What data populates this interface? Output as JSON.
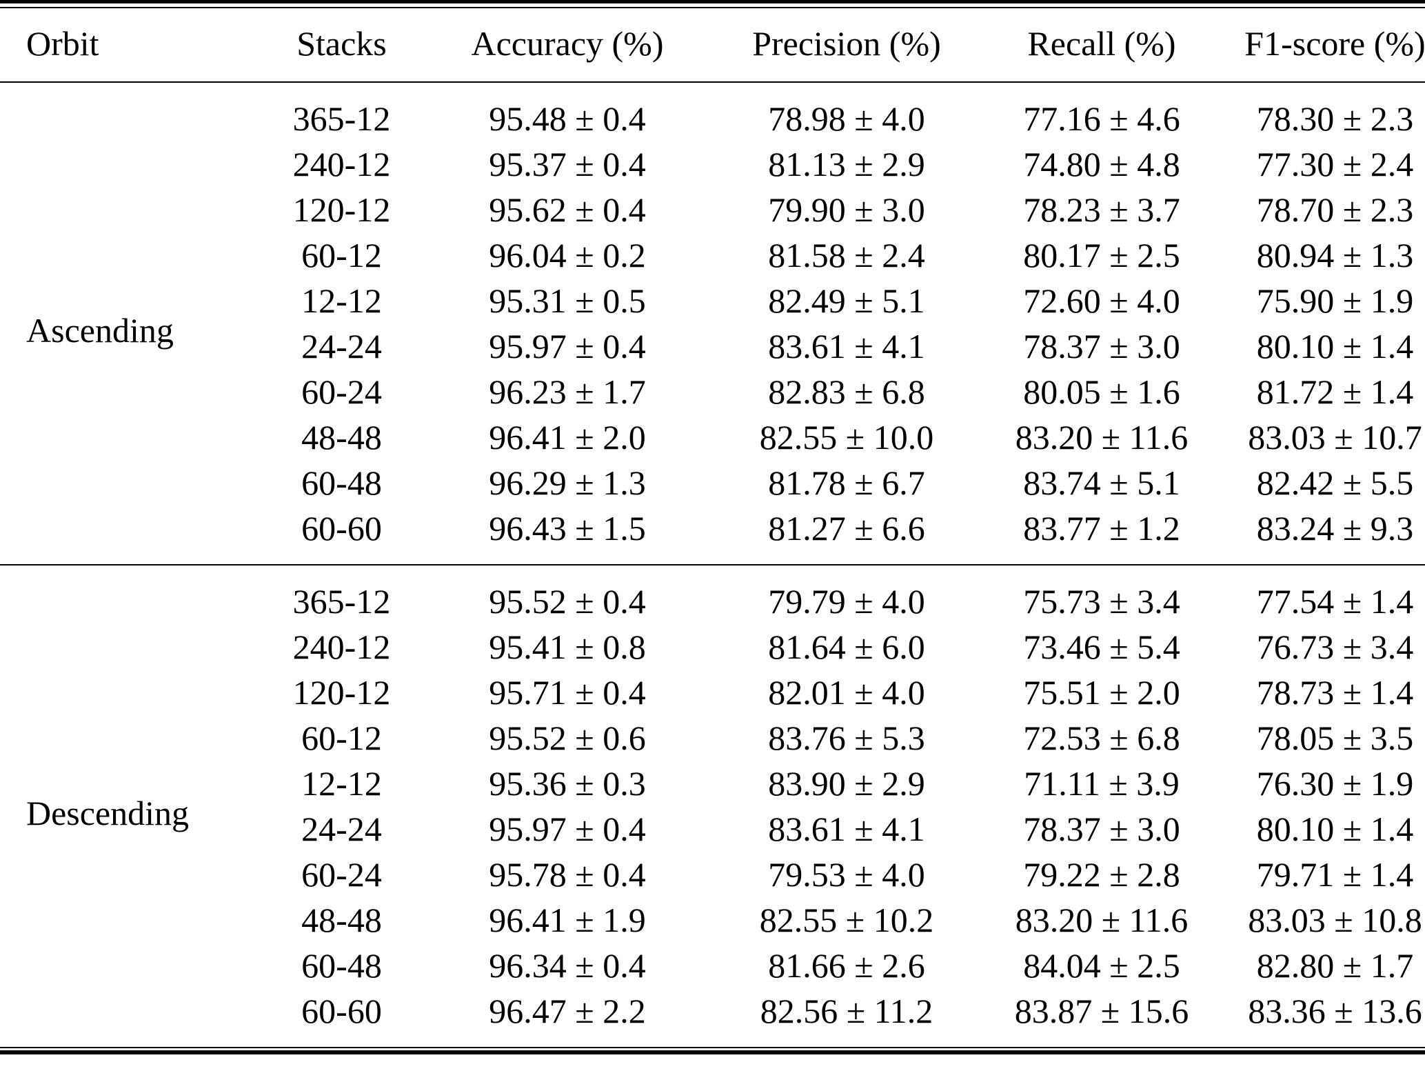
{
  "page": {
    "background": "#ffffff",
    "text_color": "#000000",
    "rule_color": "#000000"
  },
  "table": {
    "columns": [
      {
        "key": "orbit",
        "label": "Orbit"
      },
      {
        "key": "stacks",
        "label": "Stacks"
      },
      {
        "key": "accuracy",
        "label": "Accuracy (%)"
      },
      {
        "key": "precision",
        "label": "Precision (%)"
      },
      {
        "key": "recall",
        "label": "Recall (%)"
      },
      {
        "key": "f1",
        "label": "F1-score (%)"
      }
    ],
    "value_keys": [
      "stacks",
      "accuracy",
      "precision",
      "recall",
      "f1"
    ],
    "sections": [
      {
        "orbit": "Ascending",
        "rows": [
          {
            "stacks": "365-12",
            "accuracy": "95.48 ± 0.4",
            "precision": "78.98 ± 4.0",
            "recall": "77.16 ± 4.6",
            "f1": "78.30 ± 2.3"
          },
          {
            "stacks": "240-12",
            "accuracy": "95.37 ± 0.4",
            "precision": "81.13 ± 2.9",
            "recall": "74.80 ± 4.8",
            "f1": "77.30 ± 2.4"
          },
          {
            "stacks": "120-12",
            "accuracy": "95.62 ± 0.4",
            "precision": "79.90 ± 3.0",
            "recall": "78.23 ± 3.7",
            "f1": "78.70 ± 2.3"
          },
          {
            "stacks": "60-12",
            "accuracy": "96.04 ± 0.2",
            "precision": "81.58 ± 2.4",
            "recall": "80.17 ± 2.5",
            "f1": "80.94 ± 1.3"
          },
          {
            "stacks": "12-12",
            "accuracy": "95.31 ± 0.5",
            "precision": "82.49 ± 5.1",
            "recall": "72.60 ± 4.0",
            "f1": "75.90 ± 1.9"
          },
          {
            "stacks": "24-24",
            "accuracy": "95.97 ± 0.4",
            "precision": "83.61 ± 4.1",
            "recall": "78.37 ± 3.0",
            "f1": "80.10 ± 1.4"
          },
          {
            "stacks": "60-24",
            "accuracy": "96.23 ± 1.7",
            "precision": "82.83 ± 6.8",
            "recall": "80.05 ± 1.6",
            "f1": "81.72 ± 1.4"
          },
          {
            "stacks": "48-48",
            "accuracy": "96.41 ± 2.0",
            "precision": "82.55 ± 10.0",
            "recall": "83.20 ± 11.6",
            "f1": "83.03 ± 10.7"
          },
          {
            "stacks": "60-48",
            "accuracy": "96.29 ± 1.3",
            "precision": "81.78 ± 6.7",
            "recall": "83.74 ± 5.1",
            "f1": "82.42 ± 5.5"
          },
          {
            "stacks": "60-60",
            "accuracy": "96.43 ± 1.5",
            "precision": "81.27 ± 6.6",
            "recall": "83.77 ± 1.2",
            "f1": "83.24 ± 9.3"
          }
        ]
      },
      {
        "orbit": "Descending",
        "rows": [
          {
            "stacks": "365-12",
            "accuracy": "95.52 ± 0.4",
            "precision": "79.79 ± 4.0",
            "recall": "75.73 ± 3.4",
            "f1": "77.54 ± 1.4"
          },
          {
            "stacks": "240-12",
            "accuracy": "95.41 ± 0.8",
            "precision": "81.64 ± 6.0",
            "recall": "73.46 ± 5.4",
            "f1": "76.73 ± 3.4"
          },
          {
            "stacks": "120-12",
            "accuracy": "95.71 ± 0.4",
            "precision": "82.01 ± 4.0",
            "recall": "75.51 ± 2.0",
            "f1": "78.73 ± 1.4"
          },
          {
            "stacks": "60-12",
            "accuracy": "95.52 ± 0.6",
            "precision": "83.76 ± 5.3",
            "recall": "72.53 ± 6.8",
            "f1": "78.05 ± 3.5"
          },
          {
            "stacks": "12-12",
            "accuracy": "95.36 ± 0.3",
            "precision": "83.90 ± 2.9",
            "recall": "71.11 ± 3.9",
            "f1": "76.30 ± 1.9"
          },
          {
            "stacks": "24-24",
            "accuracy": "95.97 ± 0.4",
            "precision": "83.61 ± 4.1",
            "recall": "78.37 ± 3.0",
            "f1": "80.10 ± 1.4"
          },
          {
            "stacks": "60-24",
            "accuracy": "95.78 ± 0.4",
            "precision": "79.53 ± 4.0",
            "recall": "79.22 ± 2.8",
            "f1": "79.71 ± 1.4"
          },
          {
            "stacks": "48-48",
            "accuracy": "96.41 ± 1.9",
            "precision": "82.55 ± 10.2",
            "recall": "83.20 ± 11.6",
            "f1": "83.03 ± 10.8"
          },
          {
            "stacks": "60-48",
            "accuracy": "96.34 ± 0.4",
            "precision": "81.66 ± 2.6",
            "recall": "84.04 ± 2.5",
            "f1": "82.80 ± 1.7"
          },
          {
            "stacks": "60-60",
            "accuracy": "96.47 ± 2.2",
            "precision": "82.56 ± 11.2",
            "recall": "83.87 ± 15.6",
            "f1": "83.36 ± 13.6"
          }
        ]
      }
    ]
  }
}
